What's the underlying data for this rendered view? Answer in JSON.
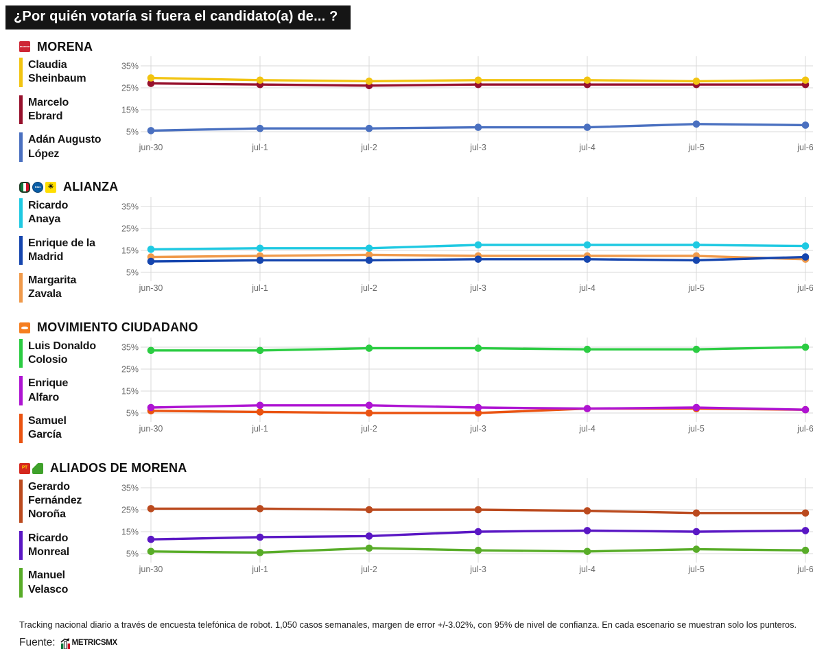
{
  "title": "¿Por quién votaría si fuera el candidato(a) de... ?",
  "axis": {
    "x_ticks": [
      "jun-30",
      "jul-1",
      "jul-2",
      "jul-3",
      "jul-4",
      "jul-5",
      "jul-6"
    ],
    "y_tick_values": [
      35,
      25,
      15,
      5
    ],
    "y_tick_labels": [
      "35%",
      "25%",
      "15%",
      "5%"
    ],
    "ylim": [
      2.5,
      39.4
    ],
    "grid": "on"
  },
  "chart_data": [
    {
      "type": "line",
      "title": "MORENA",
      "party_icons": [
        "morena"
      ],
      "categories": [
        "jun-30",
        "jul-1",
        "jul-2",
        "jul-3",
        "jul-4",
        "jul-5",
        "jul-6"
      ],
      "ylim": [
        2.5,
        39.4
      ],
      "y_ticks": [
        35,
        25,
        15,
        5
      ],
      "series": [
        {
          "name": "Claudia Sheinbaum",
          "display": "Claudia\nSheinbaum",
          "color": "#F2C411",
          "values": [
            29.5,
            28.5,
            28,
            28.5,
            28.5,
            28,
            28.5
          ]
        },
        {
          "name": "Marcelo Ebrard",
          "display": "Marcelo\nEbrard",
          "color": "#96102C",
          "values": [
            27,
            26.5,
            26,
            26.5,
            26.5,
            26.5,
            26.5
          ]
        },
        {
          "name": "Adán Augusto López",
          "display": "Adán Augusto\nLópez",
          "color": "#4A70C0",
          "values": [
            5.5,
            6.5,
            6.5,
            7,
            7,
            8.5,
            8
          ]
        }
      ]
    },
    {
      "type": "line",
      "title": "ALIANZA",
      "party_icons": [
        "pri",
        "pan",
        "prd"
      ],
      "categories": [
        "jun-30",
        "jul-1",
        "jul-2",
        "jul-3",
        "jul-4",
        "jul-5",
        "jul-6"
      ],
      "ylim": [
        2.5,
        39.4
      ],
      "y_ticks": [
        35,
        25,
        15,
        5
      ],
      "series": [
        {
          "name": "Ricardo Anaya",
          "display": "Ricardo\nAnaya",
          "color": "#1FC9E2",
          "values": [
            15.5,
            16,
            16,
            17.5,
            17.5,
            17.5,
            17
          ]
        },
        {
          "name": "Enrique de la Madrid",
          "display": "Enrique de la\nMadrid",
          "color": "#1545AE",
          "values": [
            10,
            10.5,
            10.5,
            11,
            11,
            10.5,
            12
          ]
        },
        {
          "name": "Margarita Zavala",
          "display": "Margarita\nZavala",
          "color": "#F09A4B",
          "values": [
            12,
            12.5,
            13,
            12.5,
            12.5,
            12.5,
            11
          ]
        }
      ]
    },
    {
      "type": "line",
      "title": "MOVIMIENTO CIUDADANO",
      "party_icons": [
        "mc"
      ],
      "categories": [
        "jun-30",
        "jul-1",
        "jul-2",
        "jul-3",
        "jul-4",
        "jul-5",
        "jul-6"
      ],
      "ylim": [
        2.5,
        39.4
      ],
      "y_ticks": [
        35,
        25,
        15,
        5
      ],
      "series": [
        {
          "name": "Luis Donaldo Colosio",
          "display": "Luis Donaldo\nColosio",
          "color": "#2BCC42",
          "values": [
            33.5,
            33.5,
            34.5,
            34.5,
            34,
            34,
            35
          ]
        },
        {
          "name": "Enrique Alfaro",
          "display": "Enrique\nAlfaro",
          "color": "#AE14D2",
          "values": [
            7.5,
            8.5,
            8.5,
            7.5,
            7,
            7.5,
            6.5
          ]
        },
        {
          "name": "Samuel García",
          "display": "Samuel\nGarcía",
          "color": "#EA5311",
          "values": [
            6,
            5.5,
            5,
            5,
            7,
            7,
            6.5
          ]
        }
      ]
    },
    {
      "type": "line",
      "title": "ALIADOS DE MORENA",
      "party_icons": [
        "pt",
        "pvem"
      ],
      "categories": [
        "jun-30",
        "jul-1",
        "jul-2",
        "jul-3",
        "jul-4",
        "jul-5",
        "jul-6"
      ],
      "ylim": [
        2.5,
        39.4
      ],
      "y_ticks": [
        35,
        25,
        15,
        5
      ],
      "series": [
        {
          "name": "Gerardo Fernández Noroña",
          "display": "Gerardo\nFernández\nNoroña",
          "color": "#BB4A1E",
          "values": [
            25.5,
            25.5,
            25,
            25,
            24.5,
            23.5,
            23.5
          ]
        },
        {
          "name": "Ricardo Monreal",
          "display": "Ricardo\nMonreal",
          "color": "#5A17C4",
          "values": [
            11.5,
            12.5,
            13,
            15,
            15.5,
            15,
            15.5
          ]
        },
        {
          "name": "Manuel Velasco",
          "display": "Manuel\nVelasco",
          "color": "#58AC28",
          "values": [
            6,
            5.5,
            7.5,
            6.5,
            6,
            7,
            6.5
          ]
        }
      ]
    }
  ],
  "footer": {
    "methodology": "Tracking nacional diario a través de encuesta telefónica de robot. 1,050 casos semanales, margen de error +/-3.02%, con 95% de nivel de confianza. En cada escenario se muestran solo los punteros.",
    "source_label": "Fuente:",
    "source_name": "MetricsMX"
  },
  "colors": {
    "banner_bg": "#151515",
    "banner_text": "#ffffff",
    "gridline": "#D9D9D9",
    "tick_label": "#6B6B6B"
  }
}
